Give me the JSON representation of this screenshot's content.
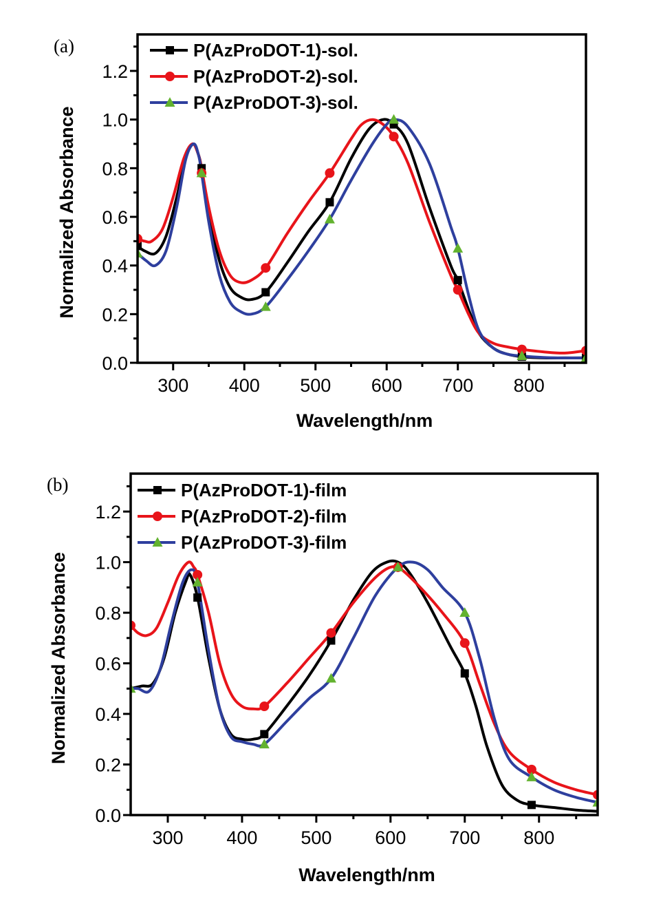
{
  "chart_data": [
    {
      "type": "line",
      "panel_label": "(a)",
      "title": "",
      "xlabel": "Wavelength/nm",
      "ylabel": "Normalized Absorbance",
      "xlim": [
        250,
        880
      ],
      "ylim": [
        0.0,
        1.35
      ],
      "xticks": [
        300,
        400,
        500,
        600,
        700,
        800
      ],
      "xtick_labels": [
        "300",
        "400",
        "500",
        "600",
        "700",
        "800"
      ],
      "yticks": [
        0.0,
        0.2,
        0.4,
        0.6,
        0.8,
        1.0,
        1.2
      ],
      "ytick_labels": [
        "0.0",
        "0.2",
        "0.4",
        "0.6",
        "0.8",
        "1.0",
        "1.2"
      ],
      "grid": false,
      "legend_position": "top-left",
      "series": [
        {
          "name": "P(AzProDOT-1)-sol.",
          "color": "#000000",
          "marker": "square",
          "marker_color": "#000000",
          "x": [
            250,
            260,
            275,
            290,
            305,
            318,
            328,
            335,
            340,
            350,
            365,
            380,
            395,
            410,
            430,
            460,
            490,
            520,
            550,
            575,
            595,
            610,
            630,
            660,
            690,
            700,
            715,
            730,
            750,
            770,
            790,
            820,
            850,
            880
          ],
          "y": [
            0.48,
            0.46,
            0.45,
            0.52,
            0.68,
            0.85,
            0.9,
            0.86,
            0.8,
            0.62,
            0.42,
            0.31,
            0.27,
            0.26,
            0.29,
            0.41,
            0.54,
            0.66,
            0.84,
            0.96,
            1.0,
            0.98,
            0.9,
            0.64,
            0.4,
            0.34,
            0.22,
            0.12,
            0.06,
            0.035,
            0.025,
            0.02,
            0.02,
            0.02
          ],
          "marker_x": [
            250,
            340,
            430,
            520,
            610,
            700,
            790,
            880
          ],
          "marker_y": [
            0.48,
            0.8,
            0.29,
            0.66,
            0.98,
            0.34,
            0.025,
            0.02
          ]
        },
        {
          "name": "P(AzProDOT-2)-sol.",
          "color": "#e8141a",
          "marker": "circle",
          "marker_color": "#e8141a",
          "x": [
            250,
            260,
            270,
            285,
            300,
            315,
            327,
            335,
            340,
            350,
            365,
            380,
            395,
            410,
            430,
            460,
            490,
            520,
            550,
            565,
            580,
            595,
            610,
            630,
            660,
            690,
            700,
            715,
            730,
            750,
            770,
            790,
            820,
            850,
            880
          ],
          "y": [
            0.51,
            0.5,
            0.5,
            0.55,
            0.68,
            0.84,
            0.9,
            0.86,
            0.8,
            0.64,
            0.46,
            0.36,
            0.33,
            0.34,
            0.39,
            0.53,
            0.66,
            0.78,
            0.92,
            0.98,
            1.0,
            0.98,
            0.93,
            0.82,
            0.58,
            0.36,
            0.3,
            0.2,
            0.12,
            0.08,
            0.065,
            0.055,
            0.045,
            0.04,
            0.05
          ],
          "marker_x": [
            250,
            340,
            430,
            520,
            610,
            700,
            790,
            880
          ],
          "marker_y": [
            0.51,
            0.78,
            0.39,
            0.78,
            0.93,
            0.3,
            0.055,
            0.05
          ]
        },
        {
          "name": "P(AzProDOT-3)-sol.",
          "color": "#2e3f9e",
          "marker": "triangle",
          "marker_color": "#62b22f",
          "x": [
            250,
            262,
            275,
            290,
            305,
            318,
            329,
            336,
            340,
            350,
            365,
            380,
            395,
            410,
            430,
            460,
            490,
            520,
            550,
            580,
            600,
            612,
            630,
            660,
            690,
            700,
            715,
            730,
            750,
            770,
            790,
            820,
            850,
            880
          ],
          "y": [
            0.45,
            0.42,
            0.4,
            0.46,
            0.64,
            0.84,
            0.9,
            0.85,
            0.78,
            0.58,
            0.36,
            0.25,
            0.21,
            0.2,
            0.23,
            0.34,
            0.46,
            0.59,
            0.75,
            0.9,
            0.98,
            1.0,
            0.97,
            0.82,
            0.56,
            0.47,
            0.28,
            0.13,
            0.06,
            0.035,
            0.028,
            0.022,
            0.02,
            0.02
          ],
          "marker_x": [
            250,
            340,
            430,
            520,
            610,
            700,
            790,
            880
          ],
          "marker_y": [
            0.45,
            0.78,
            0.23,
            0.59,
            1.0,
            0.47,
            0.028,
            0.02
          ]
        }
      ]
    },
    {
      "type": "line",
      "panel_label": "(b)",
      "title": "",
      "xlabel": "Wavelength/nm",
      "ylabel": "Normalized Absorbance",
      "xlim": [
        250,
        879
      ],
      "ylim": [
        0.0,
        1.35
      ],
      "xticks": [
        300,
        400,
        500,
        600,
        700,
        800
      ],
      "xtick_labels": [
        "300",
        "400",
        "500",
        "600",
        "700",
        "800"
      ],
      "yticks": [
        0.0,
        0.2,
        0.4,
        0.6,
        0.8,
        1.0,
        1.2
      ],
      "ytick_labels": [
        "0.0",
        "0.2",
        "0.4",
        "0.6",
        "0.8",
        "1.0",
        "1.2"
      ],
      "grid": false,
      "legend_position": "top-left",
      "series": [
        {
          "name": "P(AzProDOT-1)-film",
          "color": "#000000",
          "marker": "square",
          "marker_color": "#000000",
          "x": [
            250,
            265,
            280,
            295,
            310,
            325,
            330,
            340,
            355,
            370,
            385,
            400,
            415,
            430,
            460,
            490,
            520,
            550,
            575,
            595,
            610,
            625,
            650,
            680,
            700,
            715,
            730,
            750,
            770,
            790,
            820,
            850,
            879
          ],
          "y": [
            0.5,
            0.51,
            0.52,
            0.62,
            0.8,
            0.93,
            0.95,
            0.86,
            0.62,
            0.42,
            0.32,
            0.3,
            0.3,
            0.32,
            0.43,
            0.55,
            0.69,
            0.85,
            0.96,
            1.0,
            1.0,
            0.96,
            0.84,
            0.67,
            0.56,
            0.43,
            0.27,
            0.12,
            0.06,
            0.04,
            0.03,
            0.02,
            0.015
          ],
          "marker_x": [
            340,
            430,
            520,
            700,
            790
          ],
          "marker_y": [
            0.86,
            0.32,
            0.69,
            0.56,
            0.04
          ]
        },
        {
          "name": "P(AzProDOT-2)-film",
          "color": "#e8141a",
          "marker": "circle",
          "marker_color": "#e8141a",
          "x": [
            250,
            260,
            272,
            285,
            300,
            315,
            328,
            335,
            340,
            355,
            370,
            385,
            400,
            415,
            430,
            460,
            490,
            520,
            550,
            580,
            600,
            615,
            640,
            670,
            700,
            720,
            740,
            760,
            790,
            820,
            850,
            879
          ],
          "y": [
            0.75,
            0.72,
            0.71,
            0.74,
            0.84,
            0.95,
            1.0,
            0.98,
            0.95,
            0.8,
            0.6,
            0.48,
            0.43,
            0.42,
            0.43,
            0.52,
            0.62,
            0.72,
            0.84,
            0.94,
            0.98,
            0.97,
            0.9,
            0.8,
            0.68,
            0.52,
            0.36,
            0.25,
            0.18,
            0.13,
            0.1,
            0.08
          ],
          "marker_x": [
            250,
            340,
            430,
            520,
            610,
            700,
            790,
            879
          ],
          "marker_y": [
            0.75,
            0.95,
            0.43,
            0.72,
            0.98,
            0.68,
            0.18,
            0.08
          ]
        },
        {
          "name": "P(AzProDOT-3)-film",
          "color": "#2e3f9e",
          "marker": "triangle",
          "marker_color": "#62b22f",
          "x": [
            250,
            260,
            275,
            290,
            305,
            320,
            332,
            340,
            355,
            370,
            385,
            400,
            415,
            430,
            460,
            490,
            520,
            550,
            580,
            610,
            630,
            650,
            670,
            700,
            720,
            740,
            760,
            790,
            820,
            850,
            879
          ],
          "y": [
            0.5,
            0.5,
            0.49,
            0.58,
            0.76,
            0.92,
            0.97,
            0.92,
            0.65,
            0.42,
            0.31,
            0.29,
            0.28,
            0.28,
            0.37,
            0.46,
            0.54,
            0.7,
            0.87,
            0.98,
            1.0,
            0.97,
            0.9,
            0.8,
            0.62,
            0.38,
            0.22,
            0.15,
            0.1,
            0.07,
            0.05
          ],
          "marker_x": [
            250,
            340,
            430,
            520,
            610,
            700,
            790,
            879
          ],
          "marker_y": [
            0.5,
            0.92,
            0.28,
            0.54,
            0.98,
            0.8,
            0.15,
            0.05
          ]
        }
      ]
    }
  ]
}
